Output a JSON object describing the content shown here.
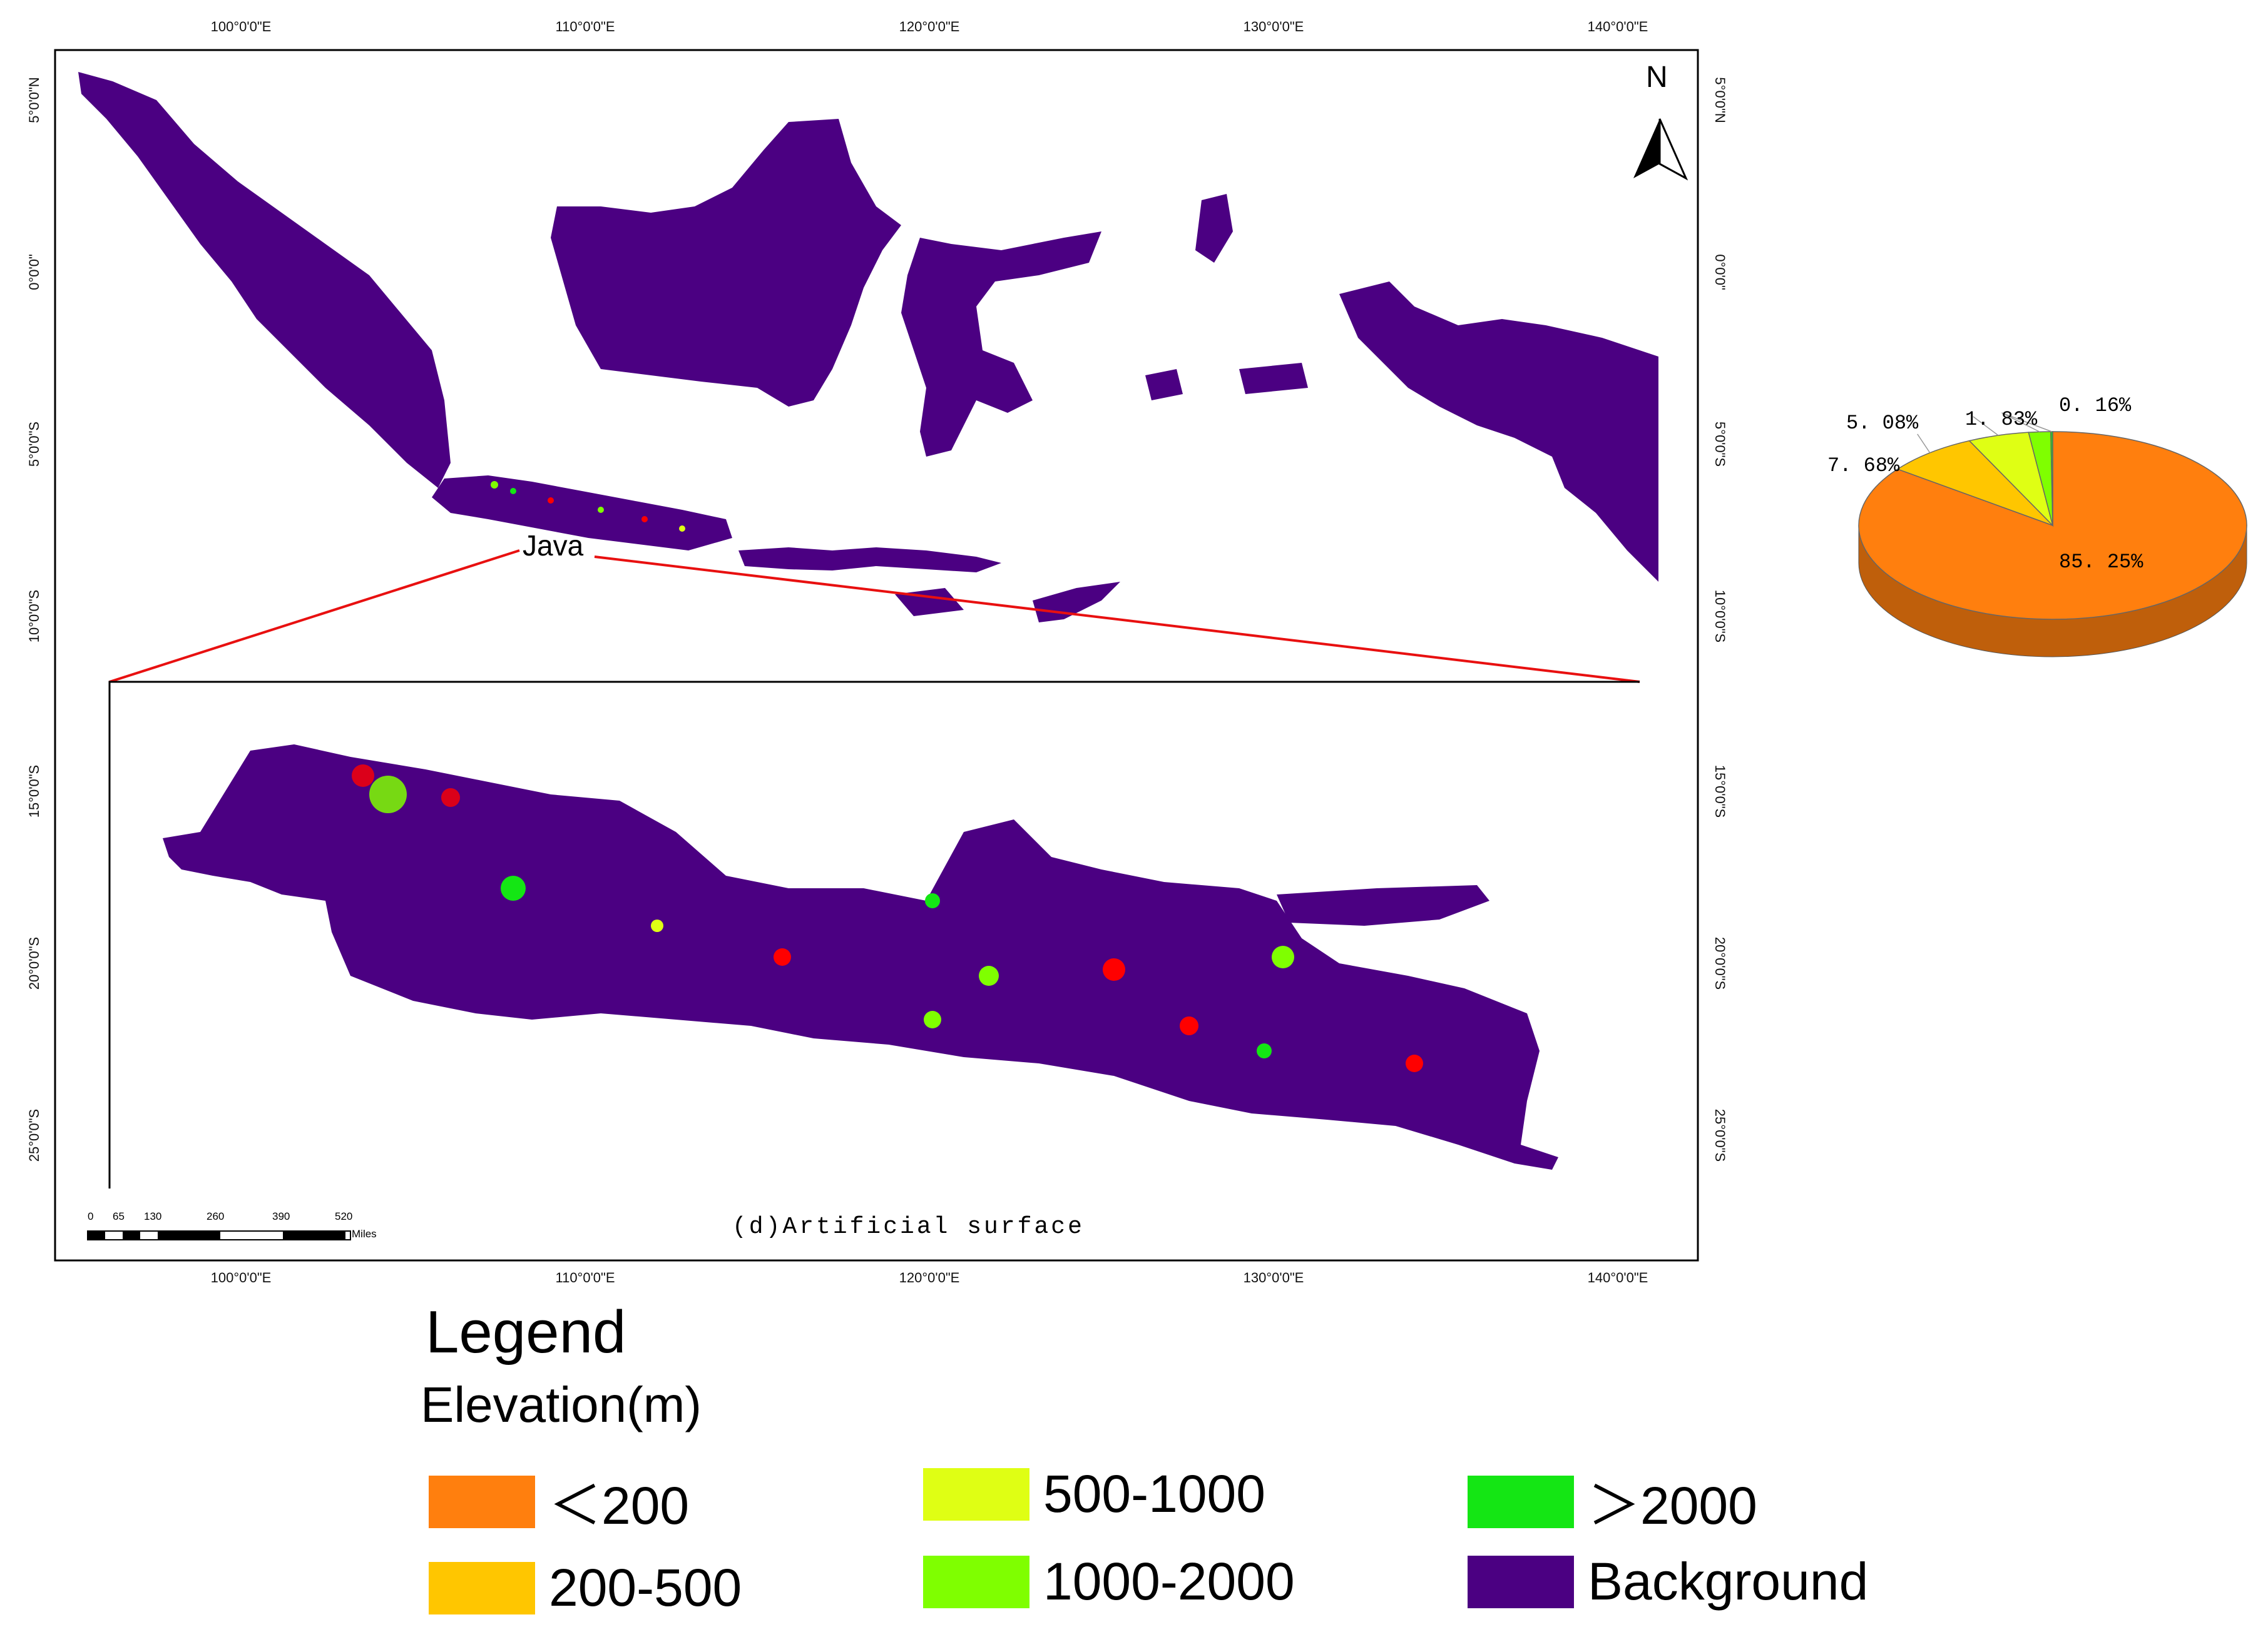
{
  "map": {
    "top_axis_ticks": [
      "100°0'0\"E",
      "110°0'0\"E",
      "120°0'0\"E",
      "130°0'0\"E",
      "140°0'0\"E"
    ],
    "bottom_axis_ticks": [
      "100°0'0\"E",
      "110°0'0\"E",
      "120°0'0\"E",
      "130°0'0\"E",
      "140°0'0\"E"
    ],
    "left_axis_ticks": [
      "5°0'0\"N",
      "0°0'0\"",
      "5°0'0\"S",
      "10°0'0\"S",
      "15°0'0\"S",
      "20°0'0\"S",
      "25°0'0\"S"
    ],
    "right_axis_ticks": [
      "5°0'0\"N",
      "0°0'0\"",
      "5°0'0\"S",
      "10°0'0\"S",
      "15°0'0\"S",
      "20°0'0\"S",
      "25°0'0\"S"
    ],
    "north_label": "N",
    "inset_region_label": "Java",
    "inset_caption": "(d)Artificial surface",
    "scale_bar": {
      "ticks": [
        "0",
        "65",
        "130",
        "260",
        "390",
        "520"
      ],
      "unit": "Miles"
    }
  },
  "legend": {
    "title": "Legend",
    "subtitle": "Elevation(m)",
    "items": [
      {
        "label": "＜200",
        "color": "#FF7F0E"
      },
      {
        "label": "200-500",
        "color": "#FFC600"
      },
      {
        "label": "500-1000",
        "color": "#DFFF14"
      },
      {
        "label": "1000-2000",
        "color": "#7FFF00"
      },
      {
        "label": "＞2000",
        "color": "#14E614"
      },
      {
        "label": "Background",
        "color": "#4B0082"
      }
    ]
  },
  "chart_data": {
    "type": "pie",
    "title": "",
    "slices": [
      {
        "label": "85. 25%",
        "category": "<200",
        "value": 85.25,
        "color": "#FF7F0E"
      },
      {
        "label": "7. 68%",
        "category": "200-500",
        "value": 7.68,
        "color": "#FFC600"
      },
      {
        "label": "5. 08%",
        "category": "500-1000",
        "value": 5.08,
        "color": "#DFFF14"
      },
      {
        "label": "1. 83%",
        "category": "1000-2000",
        "value": 1.83,
        "color": "#7FFF00"
      },
      {
        "label": "0. 16%",
        "category": ">2000",
        "value": 0.16,
        "color": "#14E614"
      }
    ]
  }
}
